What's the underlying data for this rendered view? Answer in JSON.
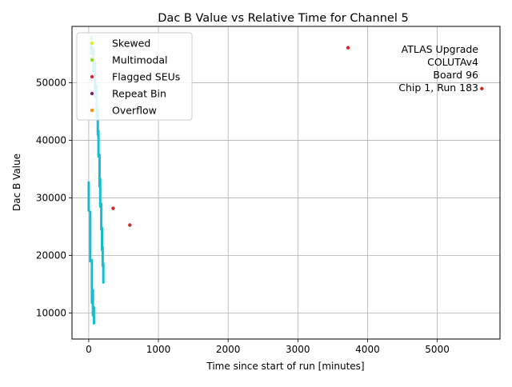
{
  "chart_data": {
    "type": "scatter",
    "title": "Dac B Value vs Relative Time for Channel 5",
    "xlabel": "Time since start of run [minutes]",
    "ylabel": "Dac B Value",
    "xlim": [
      -240,
      5900
    ],
    "ylim": [
      5500,
      59800
    ],
    "xticks": [
      0,
      1000,
      2000,
      3000,
      4000,
      5000
    ],
    "yticks": [
      10000,
      20000,
      30000,
      40000,
      50000
    ],
    "grid": true,
    "legend_position": "top-left",
    "annotation": [
      "ATLAS Upgrade",
      "COLUTAv4",
      "Board 96",
      "Chip 1, Run 183"
    ],
    "legend": [
      {
        "name": "Skewed",
        "color": "#e6f01a"
      },
      {
        "name": "Multimodal",
        "color": "#8ee01a"
      },
      {
        "name": "Flagged SEUs",
        "color": "#d62728"
      },
      {
        "name": "Repeat Bin",
        "color": "#7b1e7a"
      },
      {
        "name": "Overflow",
        "color": "#ff8c00"
      }
    ],
    "main_series": {
      "color": "#17becf",
      "segments": [
        {
          "x": 0,
          "y_top": 32700,
          "y_bottom": 27800
        },
        {
          "x": 22,
          "y_top": 27600,
          "y_bottom": 19000
        },
        {
          "x": 45,
          "y_top": 19200,
          "y_bottom": 11800
        },
        {
          "x": 60,
          "y_top": 14000,
          "y_bottom": 9600
        },
        {
          "x": 75,
          "y_top": 11000,
          "y_bottom": 8200
        },
        {
          "x": 35,
          "y_top": 58000,
          "y_bottom": 55000
        },
        {
          "x": 65,
          "y_top": 56000,
          "y_bottom": 52000
        },
        {
          "x": 90,
          "y_top": 53500,
          "y_bottom": 47500
        },
        {
          "x": 115,
          "y_top": 49500,
          "y_bottom": 44000
        },
        {
          "x": 130,
          "y_top": 45500,
          "y_bottom": 41000
        },
        {
          "x": 140,
          "y_top": 41600,
          "y_bottom": 37200
        },
        {
          "x": 155,
          "y_top": 37500,
          "y_bottom": 32000
        },
        {
          "x": 165,
          "y_top": 33300,
          "y_bottom": 28500
        },
        {
          "x": 180,
          "y_top": 29000,
          "y_bottom": 24500
        },
        {
          "x": 190,
          "y_top": 24800,
          "y_bottom": 21000
        },
        {
          "x": 200,
          "y_top": 21500,
          "y_bottom": 18200
        },
        {
          "x": 210,
          "y_top": 18600,
          "y_bottom": 15300
        }
      ]
    },
    "flagged_seus": [
      {
        "x": 350,
        "y": 28200
      },
      {
        "x": 590,
        "y": 25300
      },
      {
        "x": 3720,
        "y": 56100
      },
      {
        "x": 5640,
        "y": 49000
      }
    ],
    "legend_marker_points": [
      {
        "x": 40,
        "y": 57200,
        "color": "#e6f01a"
      },
      {
        "x": 40,
        "y": 54300,
        "color": "#8ee01a"
      }
    ]
  }
}
